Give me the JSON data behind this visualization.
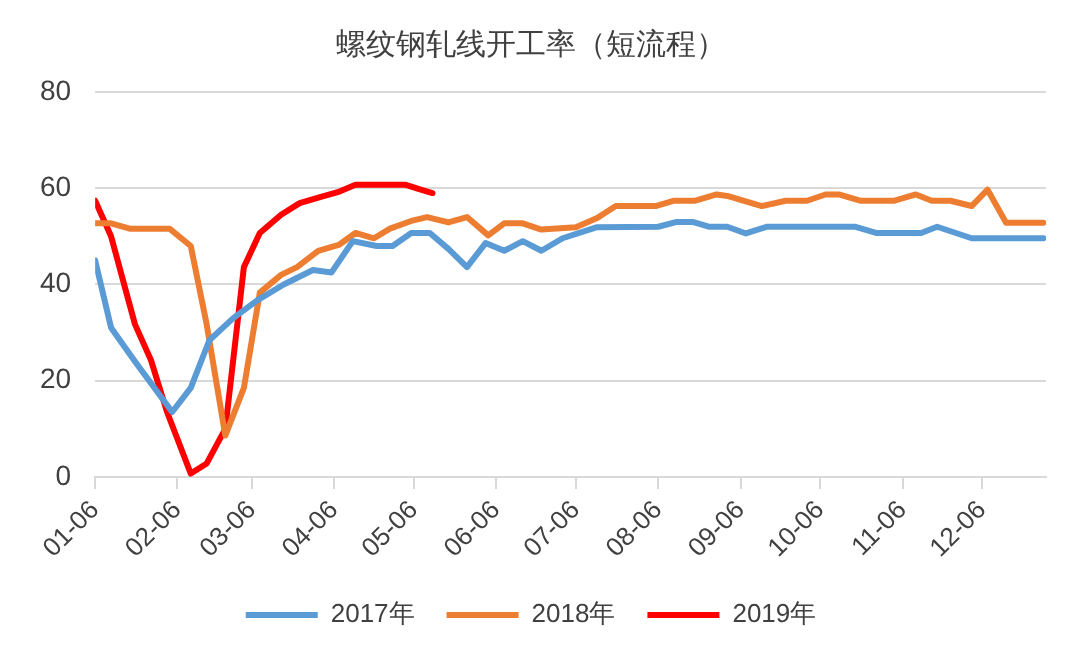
{
  "chart_data": {
    "type": "line",
    "title": "螺纹钢轧线开工率（短流程）",
    "xlim": [
      "--01-06",
      "--12-30"
    ],
    "xticks": [
      {
        "value": "--01-06",
        "label": "01-06"
      },
      {
        "value": "--02-06",
        "label": "02-06"
      },
      {
        "value": "--03-06",
        "label": "03-06"
      },
      {
        "value": "--04-06",
        "label": "04-06"
      },
      {
        "value": "--05-06",
        "label": "05-06"
      },
      {
        "value": "--06-06",
        "label": "06-06"
      },
      {
        "value": "--07-06",
        "label": "07-06"
      },
      {
        "value": "--08-06",
        "label": "08-06"
      },
      {
        "value": "--09-06",
        "label": "09-06"
      },
      {
        "value": "--10-06",
        "label": "10-06"
      },
      {
        "value": "--11-06",
        "label": "11-06"
      },
      {
        "value": "--12-06",
        "label": "12-06"
      }
    ],
    "ylim": [
      0,
      80
    ],
    "yticks": [
      0,
      20,
      40,
      60,
      80
    ],
    "grid": "y",
    "legend": "bottom",
    "marker": "none",
    "line_style": "solid",
    "series": [
      {
        "name": "2017年",
        "color": "#5b9bd5",
        "x": [
          "--01-06",
          "--01-12",
          "--01-21",
          "--02-04",
          "--02-11",
          "--02-18",
          "--02-27",
          "--03-08",
          "--03-18",
          "--03-29",
          "--04-05",
          "--04-13",
          "--04-22",
          "--04-28",
          "--05-05",
          "--05-12",
          "--05-19",
          "--05-26",
          "--06-02",
          "--06-09",
          "--06-16",
          "--06-23",
          "--07-01",
          "--07-14",
          "--08-06",
          "--08-13",
          "--08-19",
          "--08-25",
          "--09-01",
          "--09-08",
          "--09-16",
          "--10-19",
          "--10-27",
          "--11-13",
          "--11-19",
          "--12-02",
          "--12-29"
        ],
        "values": [
          45,
          31,
          24,
          13.5,
          18.5,
          28.4,
          33,
          36.7,
          40,
          43,
          42.5,
          49,
          48,
          48,
          50.7,
          50.7,
          47.4,
          43.6,
          48.6,
          47,
          49,
          47,
          49.6,
          51.9,
          52,
          53,
          53,
          52,
          52,
          50.6,
          52,
          52,
          50.7,
          50.7,
          52,
          49.6,
          49.6
        ]
      },
      {
        "name": "2018年",
        "color": "#ed7d31",
        "x": [
          "--01-06",
          "--01-12",
          "--01-19",
          "--02-03",
          "--02-11",
          "--02-17",
          "--02-24",
          "--03-03",
          "--03-09",
          "--03-17",
          "--03-23",
          "--03-31",
          "--04-08",
          "--04-14",
          "--04-21",
          "--04-27",
          "--05-05",
          "--05-11",
          "--05-19",
          "--05-26",
          "--06-03",
          "--06-09",
          "--06-16",
          "--06-23",
          "--07-06",
          "--07-14",
          "--07-21",
          "--08-05",
          "--08-12",
          "--08-20",
          "--08-28",
          "--09-01",
          "--09-14",
          "--09-23",
          "--10-01",
          "--10-08",
          "--10-13",
          "--10-21",
          "--11-03",
          "--11-11",
          "--11-17",
          "--11-24",
          "--12-02",
          "--12-08",
          "--12-15",
          "--12-29"
        ],
        "values": [
          52.7,
          52.7,
          51.6,
          51.6,
          48,
          31.7,
          8.6,
          18.5,
          38.3,
          42,
          43.6,
          47,
          48.3,
          50.7,
          49.6,
          51.6,
          53.2,
          54,
          52.9,
          54,
          50.2,
          52.7,
          52.7,
          51.4,
          51.9,
          53.8,
          56.3,
          56.3,
          57.4,
          57.4,
          58.7,
          58.4,
          56.3,
          57.4,
          57.4,
          58.7,
          58.7,
          57.4,
          57.4,
          58.7,
          57.4,
          57.4,
          56.3,
          59.7,
          52.8,
          52.8
        ]
      },
      {
        "name": "2019年",
        "color": "#ff0000",
        "x": [
          "--01-06",
          "--01-12",
          "--01-21",
          "--01-27",
          "--02-02",
          "--02-11",
          "--02-17",
          "--02-24",
          "--03-03",
          "--03-09",
          "--03-17",
          "--03-24",
          "--04-01",
          "--04-08",
          "--04-14",
          "--04-23",
          "--05-03",
          "--05-08",
          "--05-13"
        ],
        "values": [
          57.4,
          50,
          31.7,
          24.3,
          13.6,
          0.7,
          2.8,
          10,
          43.6,
          50.7,
          54.5,
          56.9,
          58.2,
          59.3,
          60.7,
          60.7,
          60.7,
          59.8,
          59
        ]
      }
    ]
  }
}
